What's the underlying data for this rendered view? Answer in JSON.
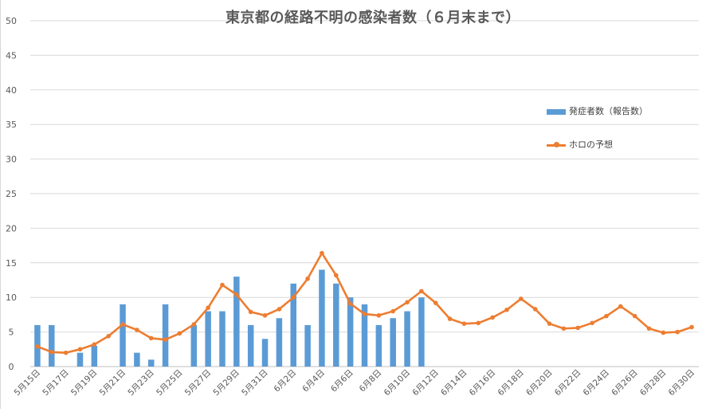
{
  "chart_data": {
    "type": "bar",
    "title": "東京都の経路不明の感染者数（６月末まで）",
    "ylim": [
      0,
      50
    ],
    "yticks": [
      0,
      5,
      10,
      15,
      20,
      25,
      30,
      35,
      40,
      45,
      50
    ],
    "grid": true,
    "legend_position": "right",
    "categories": [
      "5月15日",
      "5月16日",
      "5月17日",
      "5月18日",
      "5月19日",
      "5月20日",
      "5月21日",
      "5月22日",
      "5月23日",
      "5月24日",
      "5月25日",
      "5月26日",
      "5月27日",
      "5月28日",
      "5月29日",
      "5月30日",
      "5月31日",
      "6月1日",
      "6月2日",
      "6月3日",
      "6月4日",
      "6月5日",
      "6月6日",
      "6月7日",
      "6月8日",
      "6月9日",
      "6月10日",
      "6月11日",
      "6月12日",
      "6月13日",
      "6月14日",
      "6月15日",
      "6月16日",
      "6月17日",
      "6月18日",
      "6月19日",
      "6月20日",
      "6月21日",
      "6月22日",
      "6月23日",
      "6月24日",
      "6月25日",
      "6月26日",
      "6月27日",
      "6月28日",
      "6月29日",
      "6月30日"
    ],
    "xtick_labels": [
      "5月15日",
      "5月17日",
      "5月19日",
      "5月21日",
      "5月23日",
      "5月25日",
      "5月27日",
      "5月29日",
      "5月31日",
      "6月2日",
      "6月4日",
      "6月6日",
      "6月8日",
      "6月10日",
      "6月12日",
      "6月14日",
      "6月16日",
      "6月18日",
      "6月20日",
      "6月22日",
      "6月24日",
      "6月26日",
      "6月28日",
      "6月30日"
    ],
    "series": [
      {
        "name": "発症者数（報告数）",
        "type": "bar",
        "color": "#5b9bd5",
        "values": [
          6,
          6,
          null,
          2,
          3,
          null,
          9,
          2,
          1,
          9,
          null,
          6,
          8,
          8,
          13,
          6,
          4,
          7,
          12,
          6,
          14,
          12,
          10,
          9,
          6,
          7,
          8,
          10,
          null,
          null,
          null,
          null,
          null,
          null,
          null,
          null,
          null,
          null,
          null,
          null,
          null,
          null,
          null,
          null,
          null,
          null,
          null
        ]
      },
      {
        "name": "ホロの予想",
        "type": "line",
        "color": "#ed7d31",
        "values": [
          2.9,
          2.1,
          2.0,
          2.5,
          3.2,
          4.4,
          6.1,
          5.3,
          4.1,
          3.9,
          4.8,
          6.1,
          8.5,
          11.8,
          10.4,
          7.9,
          7.4,
          8.3,
          10.0,
          12.7,
          16.4,
          13.2,
          9.1,
          7.6,
          7.4,
          8.0,
          9.3,
          10.9,
          9.2,
          6.9,
          6.2,
          6.3,
          7.1,
          8.2,
          9.8,
          8.3,
          6.2,
          5.5,
          5.6,
          6.3,
          7.3,
          8.7,
          7.3,
          5.5,
          4.9,
          5.0,
          5.7
        ]
      }
    ]
  }
}
